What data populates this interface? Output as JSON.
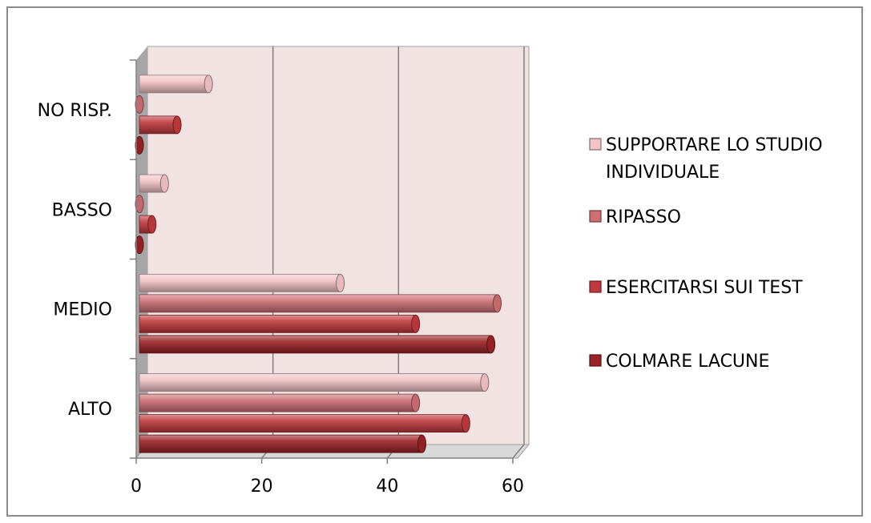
{
  "chart_data": {
    "type": "bar",
    "orientation": "horizontal",
    "style": "3d-cylinder",
    "categories": [
      "ALTO",
      "MEDIO",
      "BASSO",
      "NO RISP."
    ],
    "series": [
      {
        "name": "COLMARE LACUNE",
        "values": [
          45,
          56,
          0,
          0
        ],
        "color": "#9b2226"
      },
      {
        "name": "ESERCITARSI SUI TEST",
        "values": [
          52,
          44,
          2,
          6
        ],
        "color": "#c0393d"
      },
      {
        "name": "RIPASSO",
        "values": [
          44,
          57,
          0,
          0
        ],
        "color": "#cd6f73"
      },
      {
        "name": "SUPPORTARE LO STUDIO INDIVIDUALE",
        "values": [
          55,
          32,
          4,
          11
        ],
        "color": "#f2c4c6"
      }
    ],
    "legend_order": [
      "SUPPORTARE LO STUDIO INDIVIDUALE",
      "RIPASSO",
      "ESERCITARSI SUI TEST",
      "COLMARE LACUNE"
    ],
    "legend_lines": [
      [
        "SUPPORTARE LO STUDIO",
        "INDIVIDUALE"
      ],
      [
        "RIPASSO"
      ],
      [
        "ESERCITARSI SUI TEST"
      ],
      [
        "COLMARE LACUNE"
      ]
    ],
    "xticks": [
      "0",
      "20",
      "40",
      "60"
    ],
    "xlim": [
      0,
      60
    ],
    "grid": true,
    "legend_position": "right",
    "title": "",
    "xlabel": "",
    "ylabel": ""
  },
  "colors": {
    "plot_back_wall": "#f2e3e3",
    "side_wall": "#a6a6a6",
    "gridline": "#808080"
  }
}
